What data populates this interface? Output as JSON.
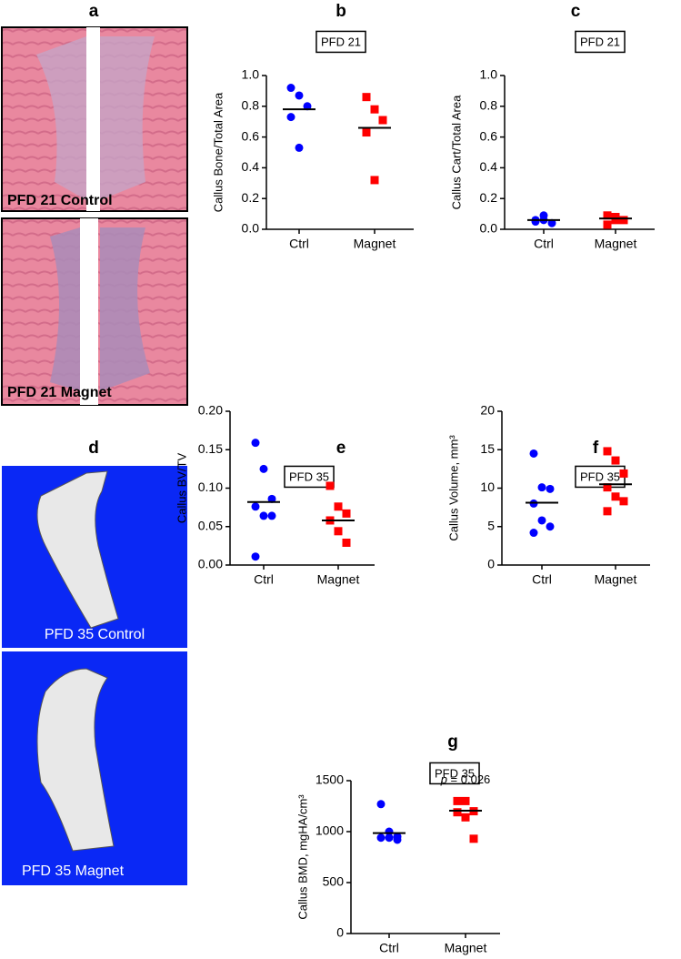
{
  "image_panels": [
    {
      "letter": "a",
      "captions": [
        "PFD 21 Control",
        "PFD 21 Magnet"
      ]
    },
    {
      "letter": "d",
      "captions": [
        "PFD 35 Control",
        "PFD 35 Magnet"
      ]
    }
  ],
  "chart_data": [
    {
      "type": "scatter",
      "panel": "b",
      "title": "PFD 21",
      "y_label": "Callus Bone/Total Area",
      "categories": [
        "Ctrl",
        "Magnet"
      ],
      "groups": [
        {
          "color": "#0000ff",
          "marker": "circle",
          "values": [
            0.92,
            0.87,
            0.8,
            0.73,
            0.53
          ],
          "mean": 0.78
        },
        {
          "color": "#ff0000",
          "marker": "square",
          "values": [
            0.86,
            0.78,
            0.71,
            0.63,
            0.32
          ],
          "mean": 0.66
        }
      ],
      "ylim": [
        0,
        1
      ],
      "yticks": [
        {
          "value": 0,
          "label": "0.0"
        },
        0.2,
        0.4,
        0.6,
        0.8,
        {
          "value": 1,
          "label": "1.0"
        }
      ]
    },
    {
      "type": "scatter",
      "panel": "c",
      "title": "PFD 21",
      "y_label": "Callus Cart/Total Area",
      "categories": [
        "Ctrl",
        "Magnet"
      ],
      "groups": [
        {
          "color": "#0000ff",
          "marker": "circle",
          "values": [
            0.06,
            0.09,
            0.04,
            0.05,
            0.06
          ],
          "mean": 0.06
        },
        {
          "color": "#ff0000",
          "marker": "square",
          "values": [
            0.03,
            0.08,
            0.06,
            0.09,
            0.06
          ],
          "mean": 0.07
        }
      ],
      "ylim": [
        0,
        1
      ],
      "yticks": [
        {
          "value": 0,
          "label": "0.0"
        },
        0.2,
        0.4,
        0.6,
        0.8,
        {
          "value": 1,
          "label": "1.0"
        }
      ]
    },
    {
      "type": "scatter",
      "panel": "e",
      "title": "PFD 35",
      "y_label": "Callus BV/TV",
      "categories": [
        "Ctrl",
        "Magnet"
      ],
      "groups": [
        {
          "color": "#0000ff",
          "marker": "circle",
          "values": [
            0.159,
            0.125,
            0.086,
            0.076,
            0.064,
            0.064,
            0.011
          ],
          "mean": 0.082
        },
        {
          "color": "#ff0000",
          "marker": "square",
          "values": [
            0.103,
            0.076,
            0.067,
            0.058,
            0.044,
            0.029
          ],
          "mean": 0.058
        }
      ],
      "ylim": [
        0,
        0.2
      ],
      "yticks": [
        {
          "value": 0,
          "label": "0.00"
        },
        0.05,
        {
          "value": 0.1,
          "label": "0.10"
        },
        0.15,
        {
          "value": 0.2,
          "label": "0.20"
        }
      ]
    },
    {
      "type": "scatter",
      "panel": "f",
      "title": "PFD 35",
      "y_label": "Callus Volume, mm³",
      "categories": [
        "Ctrl",
        "Magnet"
      ],
      "groups": [
        {
          "color": "#0000ff",
          "marker": "circle",
          "values": [
            14.5,
            10.1,
            9.9,
            8.0,
            5.8,
            5.0,
            4.2
          ],
          "mean": 8.1
        },
        {
          "color": "#ff0000",
          "marker": "square",
          "values": [
            14.8,
            13.6,
            11.9,
            10.1,
            8.9,
            8.3,
            7.0
          ],
          "mean": 10.5
        }
      ],
      "ylim": [
        0,
        20
      ],
      "yticks": [
        0,
        5,
        10,
        15,
        20
      ]
    },
    {
      "type": "scatter",
      "panel": "g",
      "title": "PFD 35",
      "y_label": "Callus BMD, mgHA/cm³",
      "annotation": [
        "p",
        "= 0.026"
      ],
      "categories": [
        "Ctrl",
        "Magnet"
      ],
      "groups": [
        {
          "color": "#0000ff",
          "marker": "circle",
          "values": [
            1270,
            1000,
            950,
            940,
            940,
            920
          ],
          "mean": 985
        },
        {
          "color": "#ff0000",
          "marker": "square",
          "values": [
            1300,
            1300,
            1200,
            1190,
            1140,
            930
          ],
          "mean": 1205
        }
      ],
      "ylim": [
        0,
        1500
      ],
      "yticks": [
        0,
        500,
        1000,
        1500
      ]
    }
  ]
}
